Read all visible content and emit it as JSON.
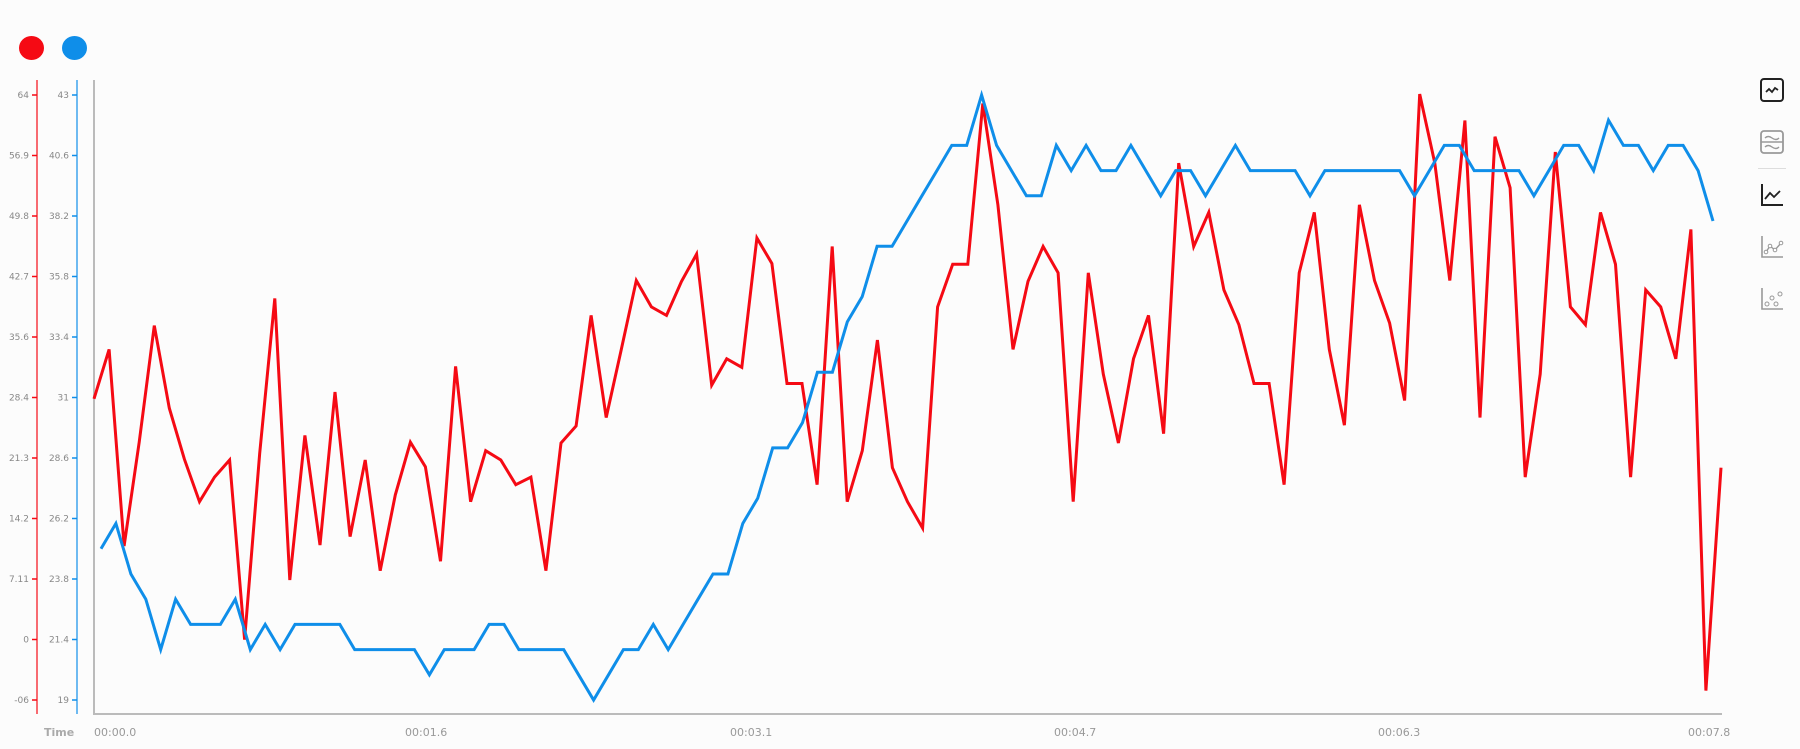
{
  "legend": [
    {
      "color": "#f50a14"
    },
    {
      "color": "#0f8ee9"
    }
  ],
  "toolbar": {
    "icons": [
      "line-chart-framed-icon",
      "split-line-chart-icon",
      "line-chart-icon",
      "line-points-chart-icon",
      "scatter-chart-icon"
    ]
  },
  "chart_data": {
    "type": "line",
    "xlabel": "Time",
    "x_range": [
      0,
      7.8
    ],
    "x_ticks": [
      "00:00.0",
      "00:01.6",
      "00:03.1",
      "00:04.7",
      "00:06.3",
      "00:07.8"
    ],
    "grid": false,
    "y_axes": [
      {
        "color": "#f50a14",
        "range": [
          -7.1,
          64
        ],
        "ticks": [
          "64",
          "56.9",
          "49.8",
          "42.7",
          "35.6",
          "28.4",
          "21.3",
          "14.2",
          "7.11",
          "0",
          "-06"
        ]
      },
      {
        "color": "#0f8ee9",
        "range": [
          19,
          43
        ],
        "ticks": [
          "43",
          "40.6",
          "38.2",
          "35.8",
          "33.4",
          "31",
          "28.6",
          "26.2",
          "23.8",
          "21.4",
          "19"
        ]
      }
    ],
    "series": [
      {
        "axis": 0,
        "color": "#f50a14",
        "values": [
          28.3,
          34.1,
          11.0,
          23.2,
          36.9,
          27.2,
          21.2,
          16.2,
          19.1,
          21.1,
          0,
          21.9,
          40.1,
          7.0,
          24.0,
          11.1,
          29.1,
          12.1,
          21.1,
          8.1,
          17.0,
          23.2,
          20.3,
          9.2,
          32.1,
          16.2,
          22.2,
          21.1,
          18.2,
          19.1,
          8.1,
          23.1,
          25.1,
          38.1,
          26.1,
          34.1,
          42.2,
          39.1,
          38.1,
          42.1,
          45.3,
          29.9,
          33.0,
          32.0,
          47.2,
          44.2,
          30.1,
          30.1,
          18.2,
          46.2,
          16.2,
          22.2,
          35.2,
          20.2,
          16.2,
          13.1,
          39.1,
          44.1,
          44.1,
          63.0,
          51.1,
          34.1,
          42.1,
          46.2,
          43.1,
          16.2,
          43.1,
          31.2,
          23.1,
          33.0,
          38.1,
          24.2,
          56.0,
          46.2,
          50.2,
          41.1,
          37.0,
          30.1,
          30.1,
          18.2,
          43.1,
          50.2,
          34.1,
          25.2,
          51.1,
          42.2,
          37.2,
          28.1,
          64.1,
          56.0,
          42.2,
          61.0,
          26.1,
          59.1,
          53.1,
          19.1,
          31.2,
          57.3,
          39.1,
          37.0,
          50.2,
          44.1,
          19.1,
          41.1,
          39.1,
          33.0,
          48.2,
          -6.0,
          20.2
        ]
      },
      {
        "axis": 1,
        "color": "#0f8ee9",
        "values": [
          25,
          26,
          24,
          23,
          21,
          23,
          22,
          22,
          22,
          23,
          21,
          22,
          21,
          22,
          22,
          22,
          22,
          21,
          21,
          21,
          21,
          21,
          20,
          21,
          21,
          21,
          22,
          22,
          21,
          21,
          21,
          21,
          20,
          19,
          20,
          21,
          21,
          22,
          21,
          22,
          23,
          24,
          24,
          26,
          27,
          29,
          29,
          30,
          32,
          32,
          34,
          35,
          37,
          37,
          38,
          39,
          40,
          41,
          41,
          43,
          41,
          40,
          39,
          39,
          41,
          40,
          41,
          40,
          40,
          41,
          40,
          39,
          40,
          40,
          39,
          40,
          41,
          40,
          40,
          40,
          40,
          39,
          40,
          40,
          40,
          40,
          40,
          40,
          39,
          40,
          41,
          41,
          40,
          40,
          40,
          40,
          39,
          40,
          41,
          41,
          40,
          42,
          41,
          41,
          40,
          41,
          41,
          40,
          38
        ]
      }
    ]
  }
}
